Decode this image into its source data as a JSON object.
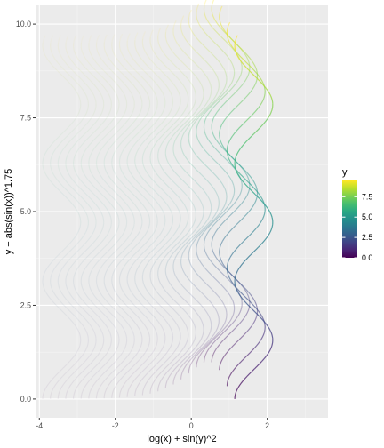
{
  "chart_data": {
    "type": "line",
    "title": "",
    "xlabel": "log(x) + sin(y)^2",
    "ylabel": "y + abs(sin(x))^1.75",
    "xlim": [
      -4.1,
      3.6
    ],
    "ylim": [
      -0.5,
      10.5
    ],
    "x_ticks": [
      -4,
      -2,
      0,
      2
    ],
    "x_tick_labels": [
      "-4",
      "-2",
      "0",
      "2"
    ],
    "y_ticks": [
      0,
      2.5,
      5,
      7.5,
      10
    ],
    "y_tick_labels": [
      "0.0",
      "2.5",
      "5.0",
      "7.5",
      "10.0"
    ],
    "grid": true,
    "legend_position": "right",
    "colorbar": {
      "title": "y",
      "range": [
        0,
        9.5
      ],
      "ticks": [
        0,
        2.5,
        5,
        7.5
      ],
      "tick_labels": [
        "0.0",
        "2.5",
        "5.0",
        "7.5"
      ],
      "colors": [
        "#440154",
        "#3b528b",
        "#21918c",
        "#5ec962",
        "#fde725"
      ]
    },
    "series_description": "curves of y + abs(sin(x))^1.75 versus log(x) + sin(y)^2, one per y value, colored by y (viridis) with opacity growing with x",
    "y_values_range": [
      0,
      9.5
    ]
  }
}
